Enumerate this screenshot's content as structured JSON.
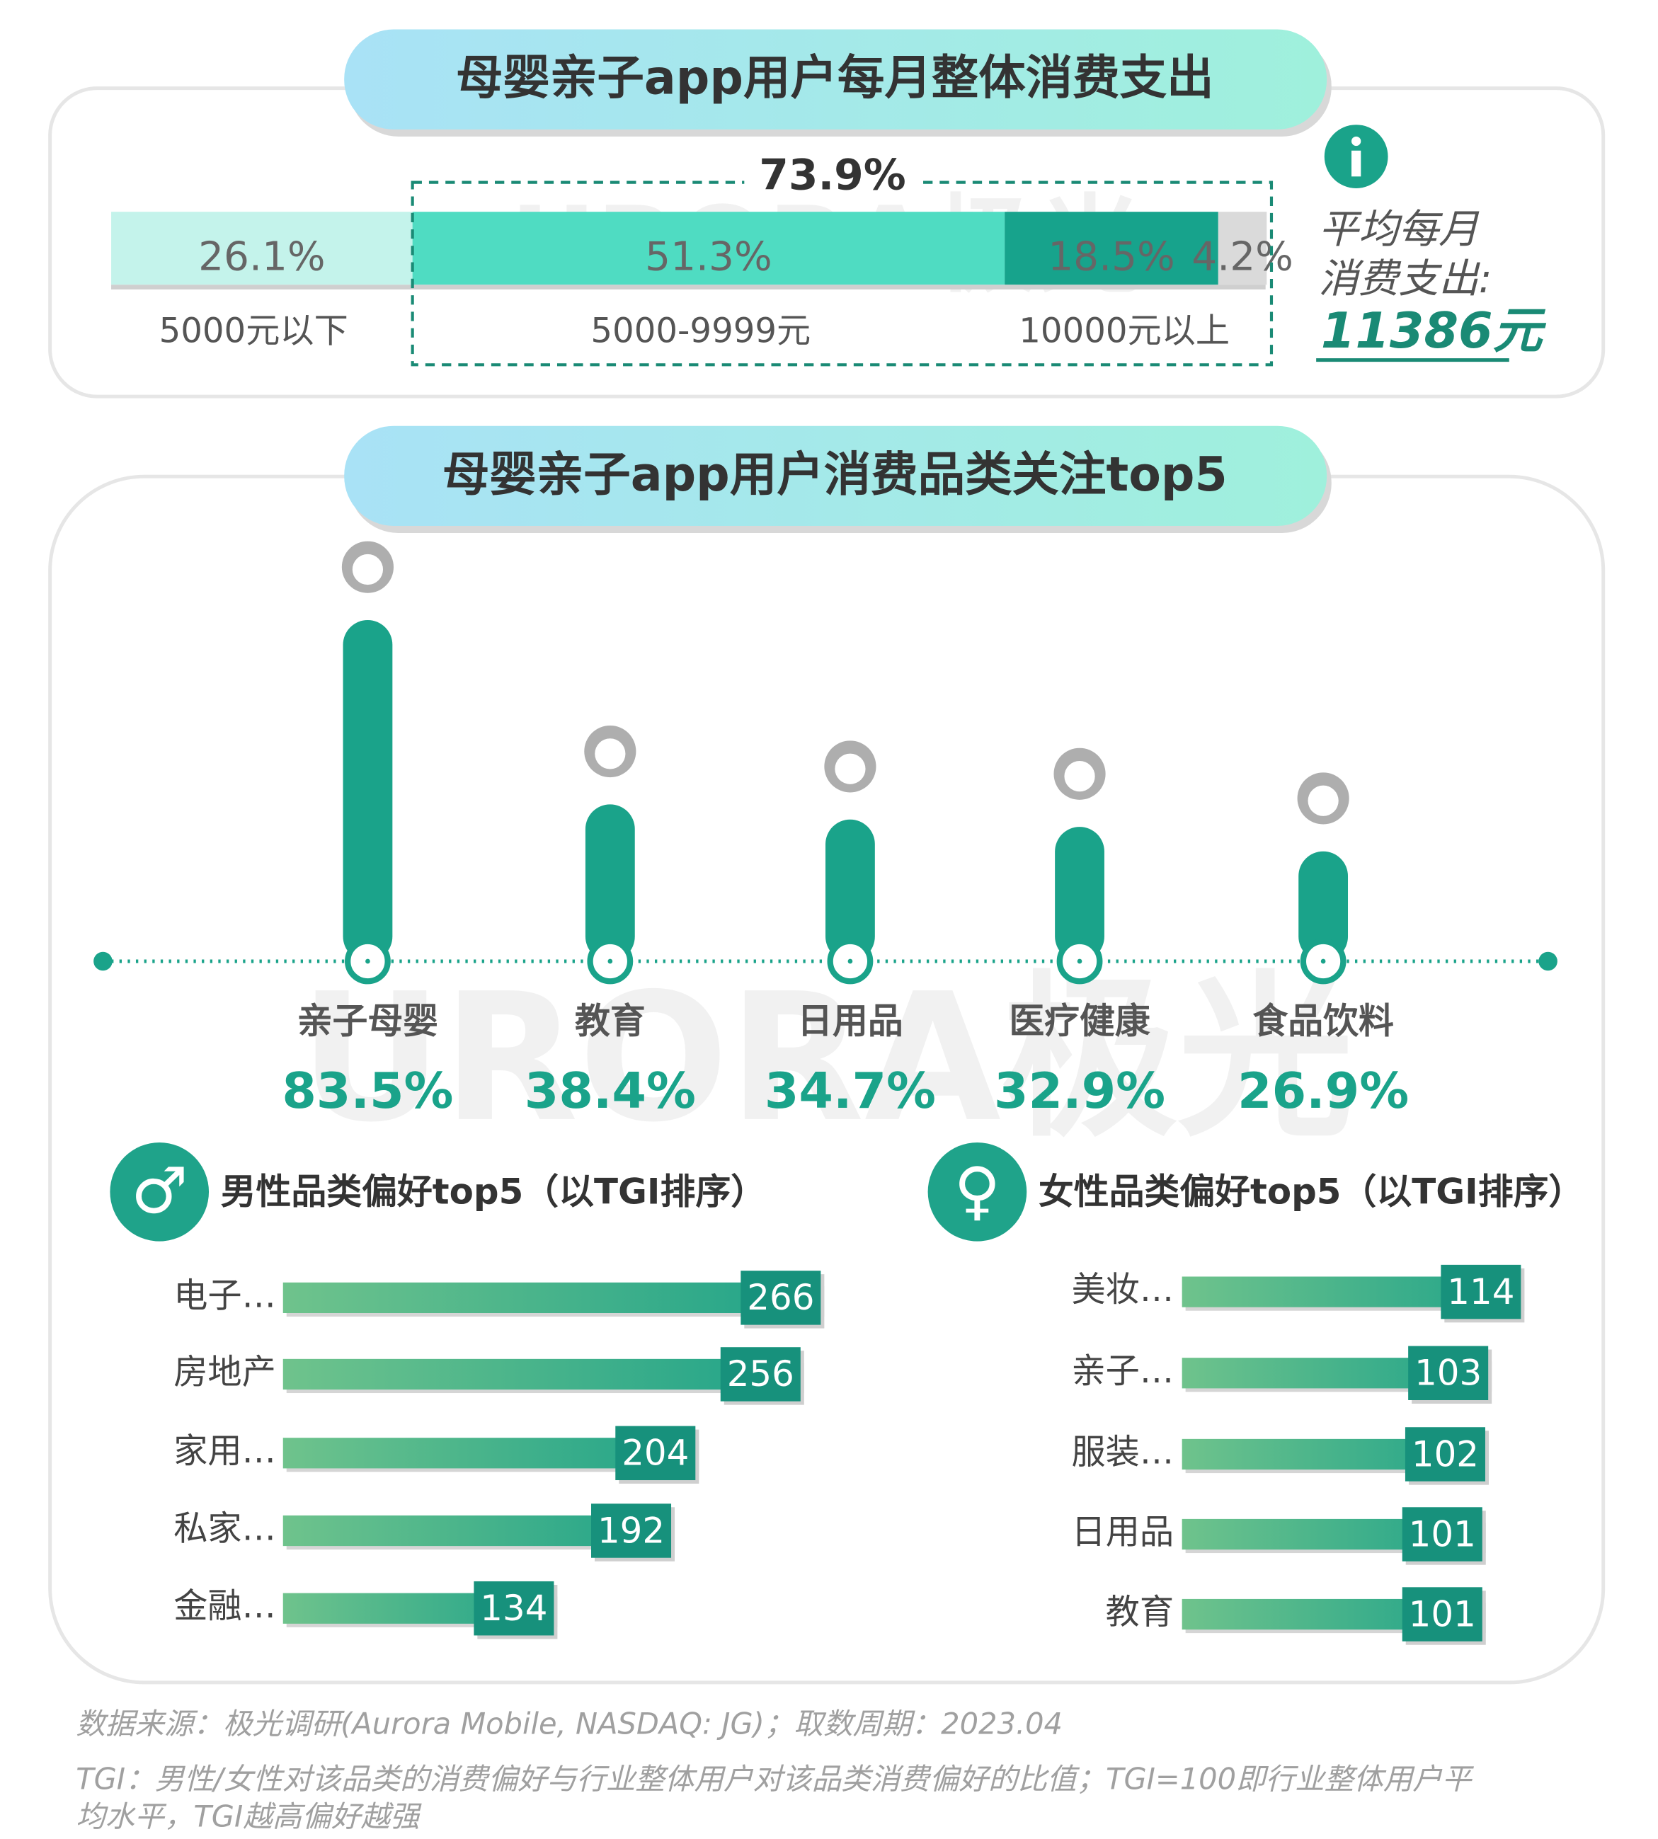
{
  "watermark": "URORA极光",
  "chart_data": [
    {
      "type": "stacked_bar",
      "title": "母婴亲子app用户每月整体消费支出",
      "values": [
        26.1,
        51.3,
        18.5,
        4.2
      ],
      "value_labels": [
        "26.1%",
        "51.3%",
        "18.5%",
        "4.2%"
      ],
      "colors": [
        "#c4f3eb",
        "#4fdcc2",
        "#17a38c",
        "#dadada"
      ],
      "range_labels": [
        "5000元以下",
        "5000-9999元",
        "10000元以上"
      ],
      "bracket": {
        "value": 73.9,
        "label": "73.9%"
      },
      "annotation": {
        "label": [
          "平均每月",
          "消费支出:"
        ],
        "value": 11386,
        "value_label": "11386元"
      }
    },
    {
      "type": "lollipop",
      "title": "母婴亲子app用户消费品类关注top5",
      "categories": [
        "亲子母婴",
        "教育",
        "日用品",
        "医疗健康",
        "食品饮料"
      ],
      "values": [
        83.5,
        38.4,
        34.7,
        32.9,
        26.9
      ],
      "value_labels": [
        "83.5%",
        "38.4%",
        "34.7%",
        "32.9%",
        "26.9%"
      ],
      "color": "#1aa38a"
    },
    {
      "type": "hbar",
      "title": "男性品类偏好top5（以TGI排序）",
      "categories": [
        "电子…",
        "房地产",
        "家用…",
        "私家…",
        "金融…"
      ],
      "values": [
        266,
        256,
        204,
        192,
        134
      ],
      "color": "#1fa38a"
    },
    {
      "type": "hbar",
      "title": "女性品类偏好top5（以TGI排序）",
      "categories": [
        "美妆…",
        "亲子…",
        "服装…",
        "日用品",
        "教育"
      ],
      "values": [
        114,
        103,
        102,
        101,
        101
      ],
      "color": "#1fa38a"
    }
  ],
  "footer": {
    "source": "数据来源：极光调研(Aurora Mobile, NASDAQ: JG)；取数周期：2023.04",
    "note": [
      "TGI：男性/女性对该品类的消费偏好与行业整体用户对该品类消费偏好的比值；TGI=100即行业整体用户平",
      "均水平，TGI越高偏好越强"
    ]
  }
}
